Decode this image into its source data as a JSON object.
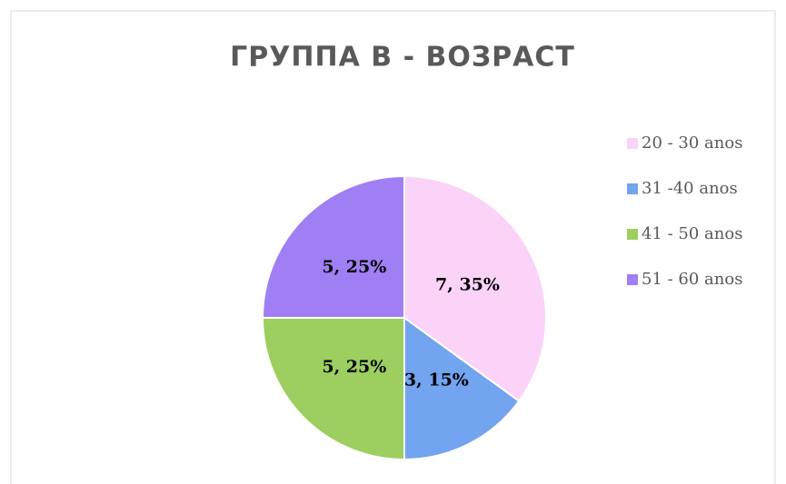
{
  "chart_data": {
    "type": "pie",
    "title": "ГРУППА В - ВОЗРАСТ",
    "categories": [
      "20 - 30 anos",
      "31 -40 anos",
      "41 - 50 anos",
      "51 - 60 anos"
    ],
    "values": [
      7,
      3,
      5,
      5
    ],
    "value_labels": [
      "7, 35%",
      "3, 15%",
      "5, 25%",
      "5, 25%"
    ],
    "colors": [
      "#fbd3f8",
      "#72a4ef",
      "#9ccf5f",
      "#a07ff4"
    ],
    "legend": "right"
  }
}
